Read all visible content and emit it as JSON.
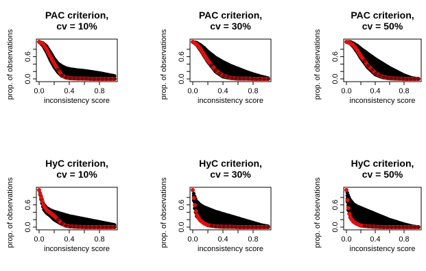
{
  "colors": {
    "black_series": "#000000",
    "red_series": "#e01010"
  },
  "chart_data": [
    {
      "type": "scatter",
      "title": [
        "PAC criterion,",
        "cv = 10%"
      ],
      "xlabel": "inconsistency score",
      "ylabel": "prop. of observations",
      "xlim": [
        0,
        1
      ],
      "ylim": [
        0,
        1
      ],
      "xticks": [
        "0.0",
        "0.4",
        "0.8"
      ],
      "yticks": [
        "0.0",
        "0.6"
      ],
      "series": [
        {
          "color": "black",
          "x": [
            0.0,
            0.05,
            0.1,
            0.15,
            0.2,
            0.25,
            0.3,
            0.35,
            0.4,
            0.5,
            0.6,
            0.7,
            0.8,
            0.9,
            1.0
          ],
          "y_upper": [
            1.0,
            0.97,
            0.88,
            0.72,
            0.55,
            0.42,
            0.35,
            0.3,
            0.27,
            0.24,
            0.22,
            0.19,
            0.16,
            0.12,
            0.08
          ],
          "y_lower": [
            1.0,
            0.9,
            0.72,
            0.5,
            0.32,
            0.18,
            0.08,
            0.04,
            0.02,
            0.01,
            0.0,
            0.0,
            0.0,
            0.0,
            0.0
          ]
        },
        {
          "color": "red",
          "x": [
            0.0,
            0.05,
            0.1,
            0.15,
            0.2,
            0.25,
            0.3,
            0.35,
            0.4,
            0.5,
            0.6,
            0.7,
            0.8,
            0.9,
            1.0
          ],
          "y": [
            1.0,
            0.95,
            0.8,
            0.6,
            0.42,
            0.25,
            0.1,
            0.04,
            0.02,
            0.01,
            0.01,
            0.0,
            0.0,
            0.0,
            0.0
          ]
        }
      ]
    },
    {
      "type": "scatter",
      "title": [
        "PAC criterion,",
        "cv = 30%"
      ],
      "xlabel": "inconsistency score",
      "ylabel": "prop. of observations",
      "xlim": [
        0,
        1
      ],
      "ylim": [
        0,
        1
      ],
      "xticks": [
        "0.0",
        "0.4",
        "0.8"
      ],
      "yticks": [
        "0.0",
        "0.6"
      ],
      "series": [
        {
          "color": "black",
          "x": [
            0.0,
            0.05,
            0.1,
            0.15,
            0.2,
            0.3,
            0.4,
            0.5,
            0.6,
            0.7,
            0.8,
            0.9,
            1.0
          ],
          "y_upper": [
            1.0,
            0.98,
            0.92,
            0.84,
            0.74,
            0.58,
            0.46,
            0.36,
            0.28,
            0.2,
            0.13,
            0.07,
            0.02
          ],
          "y_lower": [
            1.0,
            0.92,
            0.78,
            0.62,
            0.46,
            0.2,
            0.06,
            0.02,
            0.0,
            0.0,
            0.0,
            0.0,
            0.0
          ]
        },
        {
          "color": "red",
          "x": [
            0.0,
            0.05,
            0.1,
            0.15,
            0.2,
            0.3,
            0.4,
            0.5,
            0.6,
            0.7,
            0.8,
            0.9,
            1.0
          ],
          "y": [
            1.0,
            0.94,
            0.82,
            0.66,
            0.5,
            0.24,
            0.09,
            0.03,
            0.01,
            0.01,
            0.0,
            0.0,
            0.0
          ]
        }
      ]
    },
    {
      "type": "scatter",
      "title": [
        "PAC criterion,",
        "cv = 50%"
      ],
      "xlabel": "inconsistency score",
      "ylabel": "prop. of observations",
      "xlim": [
        0,
        1
      ],
      "ylim": [
        0,
        1
      ],
      "xticks": [
        "0.0",
        "0.4",
        "0.8"
      ],
      "yticks": [
        "0.0",
        "0.6"
      ],
      "series": [
        {
          "color": "black",
          "x": [
            0.0,
            0.05,
            0.1,
            0.15,
            0.2,
            0.3,
            0.4,
            0.5,
            0.6,
            0.7,
            0.8,
            0.9,
            1.0
          ],
          "y_upper": [
            1.0,
            1.0,
            0.96,
            0.9,
            0.82,
            0.68,
            0.54,
            0.42,
            0.3,
            0.2,
            0.1,
            0.03,
            0.0
          ],
          "y_lower": [
            1.0,
            0.96,
            0.86,
            0.72,
            0.56,
            0.3,
            0.12,
            0.04,
            0.01,
            0.0,
            0.0,
            0.0,
            0.0
          ]
        },
        {
          "color": "red",
          "x": [
            0.0,
            0.05,
            0.1,
            0.15,
            0.2,
            0.3,
            0.4,
            0.5,
            0.6,
            0.7,
            0.8,
            0.9,
            1.0
          ],
          "y": [
            1.0,
            0.97,
            0.9,
            0.78,
            0.62,
            0.36,
            0.16,
            0.06,
            0.02,
            0.01,
            0.0,
            0.0,
            0.0
          ]
        }
      ]
    },
    {
      "type": "scatter",
      "title": [
        "HyC criterion,",
        "cv = 10%"
      ],
      "xlabel": "inconsistency score",
      "ylabel": "prop. of observations",
      "xlim": [
        0,
        1
      ],
      "ylim": [
        0,
        1
      ],
      "xticks": [
        "0.0",
        "0.4",
        "0.8"
      ],
      "yticks": [
        "0.0",
        "0.6"
      ],
      "series": [
        {
          "color": "black",
          "x": [
            0.0,
            0.03,
            0.06,
            0.1,
            0.15,
            0.2,
            0.3,
            0.4,
            0.5,
            0.6,
            0.7,
            0.8,
            0.9,
            1.0
          ],
          "y_upper": [
            1.0,
            0.8,
            0.62,
            0.52,
            0.46,
            0.42,
            0.36,
            0.3,
            0.26,
            0.22,
            0.18,
            0.14,
            0.1,
            0.06
          ],
          "y_lower": [
            1.0,
            0.7,
            0.48,
            0.38,
            0.3,
            0.2,
            0.08,
            0.02,
            0.0,
            0.0,
            0.0,
            0.0,
            0.0,
            0.0
          ]
        },
        {
          "color": "red",
          "x": [
            0.0,
            0.03,
            0.06,
            0.1,
            0.15,
            0.2,
            0.25,
            0.3,
            0.35,
            0.4,
            0.5,
            0.6,
            0.8,
            1.0
          ],
          "y": [
            1.0,
            0.78,
            0.58,
            0.46,
            0.38,
            0.3,
            0.2,
            0.1,
            0.04,
            0.02,
            0.01,
            0.0,
            0.0,
            0.0
          ]
        }
      ]
    },
    {
      "type": "scatter",
      "title": [
        "HyC criterion,",
        "cv = 30%"
      ],
      "xlabel": "inconsistency score",
      "ylabel": "prop. of observations",
      "xlim": [
        0,
        1
      ],
      "ylim": [
        0,
        1
      ],
      "xticks": [
        "0.0",
        "0.4",
        "0.8"
      ],
      "yticks": [
        "0.0",
        "0.6"
      ],
      "series": [
        {
          "color": "black",
          "x": [
            0.0,
            0.02,
            0.05,
            0.1,
            0.15,
            0.2,
            0.3,
            0.4,
            0.5,
            0.6,
            0.7,
            0.8,
            0.9,
            1.0
          ],
          "y_upper": [
            1.0,
            0.85,
            0.7,
            0.6,
            0.54,
            0.5,
            0.42,
            0.36,
            0.3,
            0.24,
            0.18,
            0.12,
            0.06,
            0.02
          ],
          "y_lower": [
            1.0,
            0.55,
            0.3,
            0.18,
            0.1,
            0.06,
            0.02,
            0.0,
            0.0,
            0.0,
            0.0,
            0.0,
            0.0,
            0.0
          ]
        },
        {
          "color": "red",
          "x": [
            0.0,
            0.02,
            0.04,
            0.06,
            0.1,
            0.15,
            0.2,
            0.3,
            0.4,
            0.5,
            0.6,
            0.8,
            1.0
          ],
          "y": [
            1.0,
            0.7,
            0.45,
            0.3,
            0.18,
            0.1,
            0.05,
            0.02,
            0.01,
            0.01,
            0.0,
            0.0,
            0.0
          ]
        }
      ]
    },
    {
      "type": "scatter",
      "title": [
        "HyC criterion,",
        "cv = 50%"
      ],
      "xlabel": "inconsistency score",
      "ylabel": "prop. of observations",
      "xlim": [
        0,
        1
      ],
      "ylim": [
        0,
        1
      ],
      "xticks": [
        "0.0",
        "0.4",
        "0.8"
      ],
      "yticks": [
        "0.0",
        "0.6"
      ],
      "series": [
        {
          "color": "black",
          "x": [
            0.0,
            0.02,
            0.05,
            0.1,
            0.15,
            0.2,
            0.3,
            0.4,
            0.5,
            0.6,
            0.7,
            0.8,
            0.9,
            1.0
          ],
          "y_upper": [
            1.0,
            0.88,
            0.74,
            0.62,
            0.56,
            0.52,
            0.44,
            0.36,
            0.28,
            0.2,
            0.14,
            0.08,
            0.03,
            0.0
          ],
          "y_lower": [
            1.0,
            0.5,
            0.26,
            0.14,
            0.08,
            0.05,
            0.02,
            0.0,
            0.0,
            0.0,
            0.0,
            0.0,
            0.0,
            0.0
          ]
        },
        {
          "color": "red",
          "x": [
            0.0,
            0.02,
            0.04,
            0.06,
            0.1,
            0.15,
            0.2,
            0.3,
            0.4,
            0.5,
            0.6,
            0.8,
            1.0
          ],
          "y": [
            1.0,
            0.62,
            0.38,
            0.24,
            0.14,
            0.08,
            0.04,
            0.02,
            0.01,
            0.0,
            0.0,
            0.0,
            0.0
          ]
        }
      ]
    }
  ]
}
